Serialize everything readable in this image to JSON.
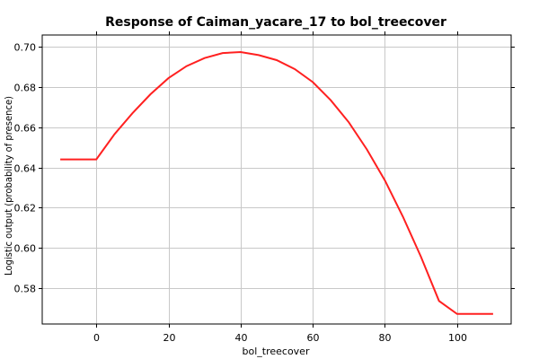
{
  "chart_data": {
    "type": "line",
    "title": "Response of Caiman_yacare_17 to bol_treecover",
    "xlabel": "bol_treecover",
    "ylabel": "Logistic output (probability of presence)",
    "xlim": [
      -15,
      115
    ],
    "ylim": [
      0.562,
      0.706
    ],
    "xticks": [
      0,
      20,
      40,
      60,
      80,
      100
    ],
    "yticks": [
      0.58,
      0.6,
      0.62,
      0.64,
      0.66,
      0.68,
      0.7
    ],
    "xtick_labels": [
      "0",
      "20",
      "40",
      "60",
      "80",
      "100"
    ],
    "ytick_labels": [
      "0.58",
      "0.60",
      "0.62",
      "0.64",
      "0.66",
      "0.68",
      "0.70"
    ],
    "grid": true,
    "color": "#ff2020",
    "series": [
      {
        "x": [
          -10,
          0,
          5,
          10,
          15,
          20,
          25,
          30,
          35,
          40,
          45,
          50,
          55,
          60,
          65,
          70,
          75,
          80,
          85,
          90,
          95,
          100,
          110
        ],
        "y": [
          0.644,
          0.644,
          0.6565,
          0.667,
          0.6765,
          0.6845,
          0.6905,
          0.6945,
          0.697,
          0.6975,
          0.696,
          0.6935,
          0.689,
          0.6825,
          0.6735,
          0.6625,
          0.649,
          0.6335,
          0.6155,
          0.5955,
          0.5735,
          0.567,
          0.567
        ]
      }
    ]
  }
}
